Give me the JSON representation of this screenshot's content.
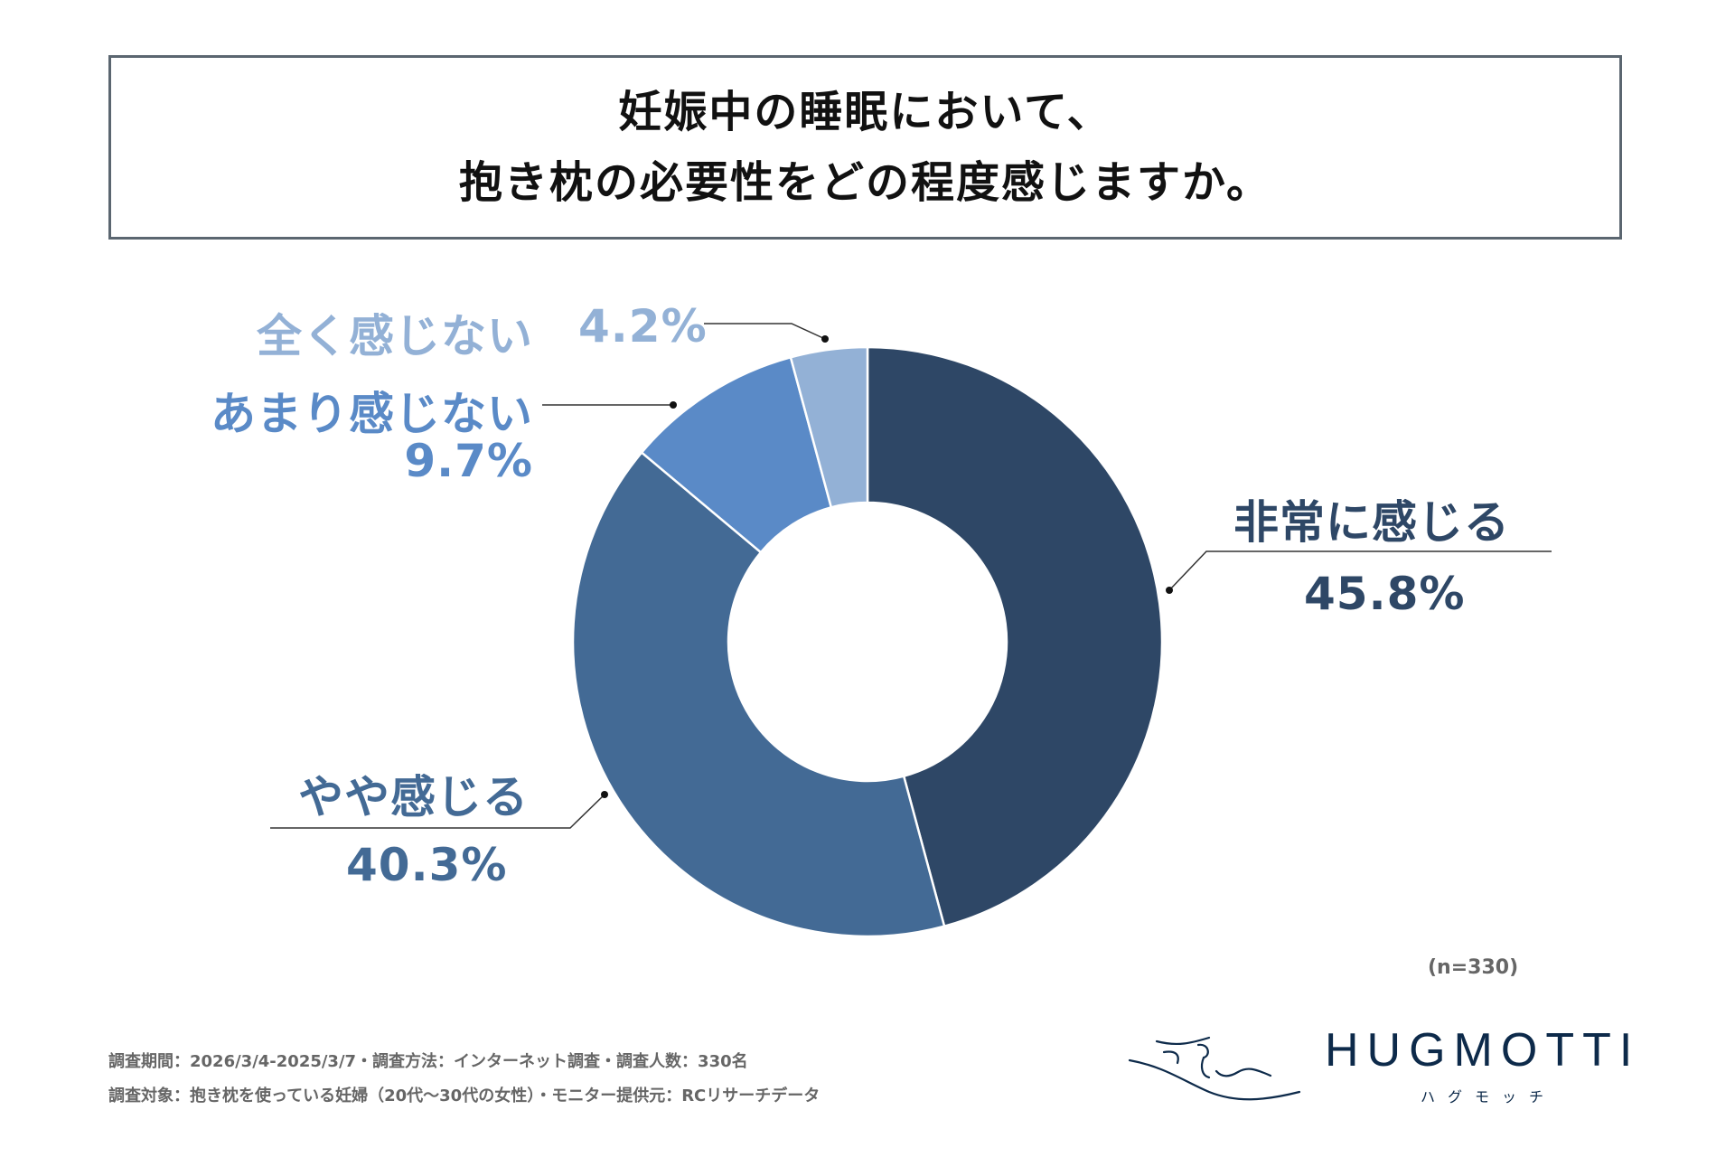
{
  "title": {
    "line1": "妊娠中の睡眠において、",
    "line2": "抱き枕の必要性をどの程度感じますか。"
  },
  "chart_data": {
    "type": "pie",
    "donut": true,
    "categories": [
      "非常に感じる",
      "やや感じる",
      "あまり感じない",
      "全く感じない"
    ],
    "values": [
      45.8,
      40.3,
      9.7,
      4.2
    ],
    "labels": [
      "45.8%",
      "40.3%",
      "9.7%",
      "4.2%"
    ],
    "colors": [
      "#2e4766",
      "#436a95",
      "#5a8ac7",
      "#93b1d6"
    ],
    "start": "top",
    "direction": "clockwise"
  },
  "sample_size": "(n=330)",
  "footer": {
    "line1": "調査期間：2026/3/4-2025/3/7・調査方法：インターネット調査・調査人数：330名",
    "line2": "調査対象：抱き枕を使っている妊婦（20代〜30代の女性）・モニター提供元：RCリサーチデータ"
  },
  "logo": {
    "name": "HUGMOTTI",
    "kana": "ハグモッチ"
  }
}
